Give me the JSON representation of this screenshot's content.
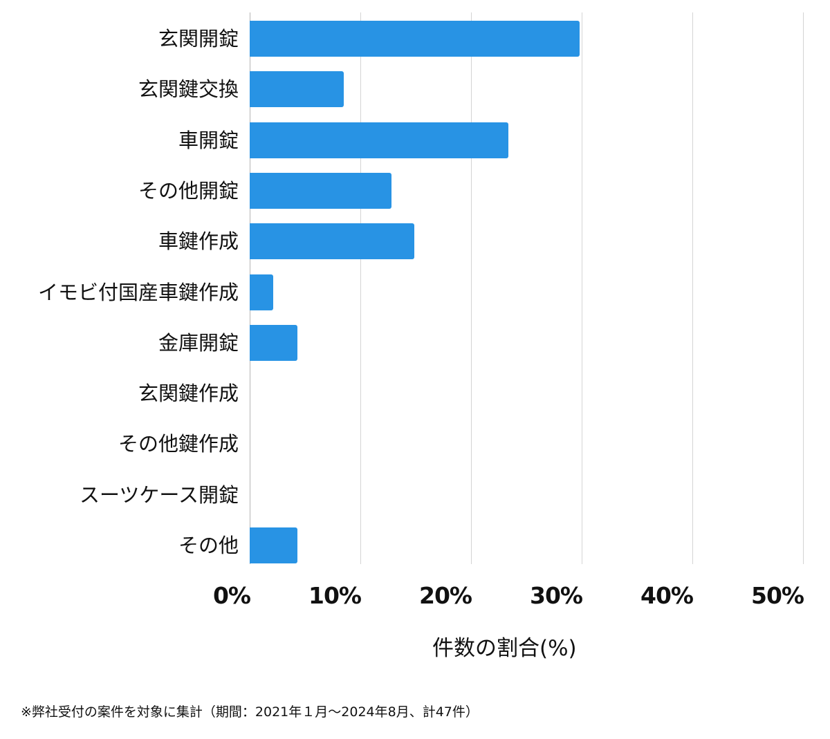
{
  "chart_data": {
    "type": "bar",
    "orientation": "horizontal",
    "title": "",
    "categories": [
      "玄関開錠",
      "玄関鍵交換",
      "車開錠",
      "その他開錠",
      "車鍵作成",
      "イモビ付国産車鍵作成",
      "金庫開錠",
      "玄関鍵作成",
      "その他鍵作成",
      "スーツケース開錠",
      "その他"
    ],
    "values": [
      29.8,
      8.5,
      23.4,
      12.8,
      14.9,
      2.1,
      4.3,
      0,
      0,
      0,
      4.3
    ],
    "xlabel": "件数の割合(%)",
    "ylabel": "",
    "xlim": [
      0,
      50
    ],
    "xticks": [
      "0%",
      "10%",
      "20%",
      "30%",
      "40%",
      "50%"
    ],
    "grid": true,
    "bar_color": "#2893e4",
    "note": "※弊社受付の案件を対象に集計（期間：2021年１月～2024年8月、計47件）"
  },
  "axis": {
    "ticks": [
      "0%",
      "10%",
      "20%",
      "30%",
      "40%",
      "50%"
    ],
    "xlabel": "件数の割合(%)"
  },
  "footnote": "※弊社受付の案件を対象に集計（期間：2021年１月～2024年8月、計47件）"
}
